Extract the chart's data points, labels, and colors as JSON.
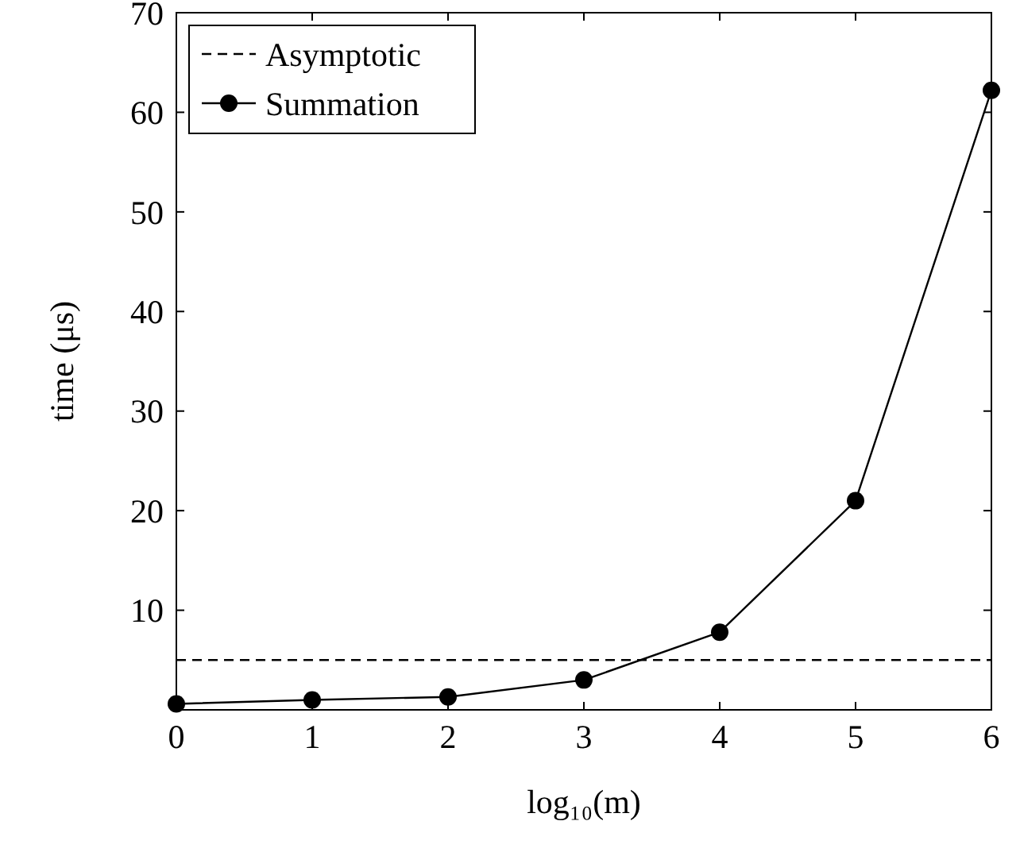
{
  "chart_data": {
    "type": "line",
    "xlabel": "log₁₀(m)",
    "ylabel": "time (μs)",
    "x": [
      0,
      1,
      2,
      3,
      4,
      5,
      6
    ],
    "xlim": [
      0,
      6
    ],
    "xticks": [
      0,
      1,
      2,
      3,
      4,
      5,
      6
    ],
    "ylim": [
      0,
      70
    ],
    "yticks": [
      10,
      20,
      30,
      40,
      50,
      60,
      70
    ],
    "grid": false,
    "legend": "top left",
    "series": [
      {
        "name": "Asymptotic",
        "color": "#000000",
        "values": [
          5,
          5,
          5,
          5,
          5,
          5,
          5
        ],
        "line_style": "dashed",
        "marker": "none"
      },
      {
        "name": "Summation",
        "color": "#000000",
        "values": [
          0.6,
          1.0,
          1.3,
          3.0,
          7.8,
          21,
          62.2
        ],
        "line_style": "solid",
        "marker": "circle"
      }
    ]
  }
}
